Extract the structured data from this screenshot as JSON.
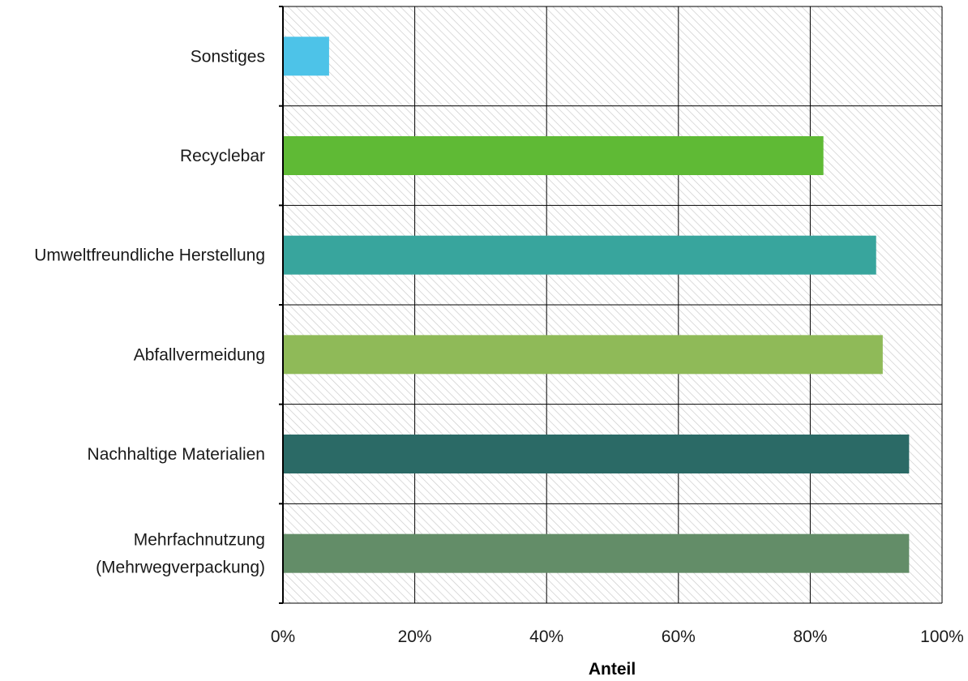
{
  "chart_data": {
    "type": "bar",
    "orientation": "horizontal",
    "categories": [
      [
        "Sonstiges"
      ],
      [
        "Recyclebar"
      ],
      [
        "Umweltfreundliche Herstellung"
      ],
      [
        "Abfallvermeidung"
      ],
      [
        "Nachhaltige Materialien"
      ],
      [
        "Mehrfachnutzung",
        "(Mehrwegverpackung)"
      ]
    ],
    "values": [
      0.07,
      0.82,
      0.9,
      0.91,
      0.95,
      0.95
    ],
    "colors": [
      "#4dc3e8",
      "#5fba35",
      "#38a59d",
      "#8fba58",
      "#2b6a66",
      "#638d68"
    ],
    "xlabel": "Anteil",
    "xlim": [
      0,
      1
    ],
    "xticks": [
      {
        "value": 0,
        "label": "0%"
      },
      {
        "value": 0.2,
        "label": "20%"
      },
      {
        "value": 0.4,
        "label": "40%"
      },
      {
        "value": 0.6,
        "label": "60%"
      },
      {
        "value": 0.8,
        "label": "80%"
      },
      {
        "value": 1,
        "label": "100%"
      }
    ],
    "grid": true,
    "plot_background": "diagonal-hatch",
    "legend": "none"
  }
}
